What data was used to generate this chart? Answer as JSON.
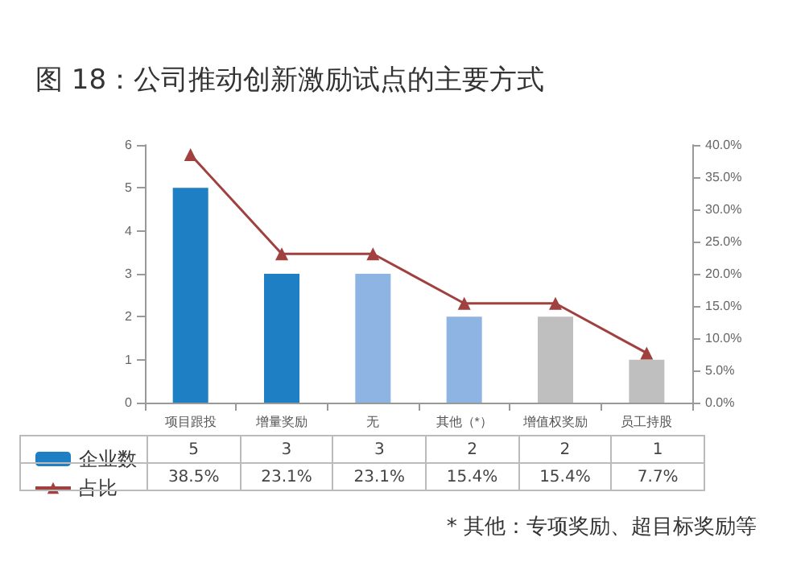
{
  "chart_data": {
    "type": "bar",
    "title": "图 18：公司推动创新激励试点的主要方式",
    "categories": [
      "项目跟投",
      "增量奖励",
      "无",
      "其他（*）",
      "增值权奖励",
      "员工持股"
    ],
    "series": [
      {
        "name": "企业数",
        "colors": [
          "#1f7fc4",
          "#1f7fc4",
          "#8db4e2",
          "#8db4e2",
          "#bfbfbf",
          "#bfbfbf"
        ],
        "color": "#1f7fc4",
        "values": [
          5,
          3,
          3,
          2,
          2,
          1
        ],
        "value_labels": [
          "5",
          "3",
          "3",
          "2",
          "2",
          "1"
        ]
      },
      {
        "name": "占比",
        "type": "line",
        "axis": "y2",
        "color": "#a0413f",
        "marker": "triangle",
        "values": [
          38.5,
          23.1,
          23.1,
          15.4,
          15.4,
          7.7
        ],
        "value_labels": [
          "38.5%",
          "23.1%",
          "23.1%",
          "15.4%",
          "15.4%",
          "7.7%"
        ]
      }
    ],
    "ylim": [
      0,
      6
    ],
    "yticks": [
      0,
      1,
      2,
      3,
      4,
      5,
      6
    ],
    "y2lim": [
      0,
      40
    ],
    "y2ticks": [
      {
        "value": 0,
        "label": "0.0%"
      },
      {
        "value": 5,
        "label": "5.0%"
      },
      {
        "value": 10,
        "label": "10.0%"
      },
      {
        "value": 15,
        "label": "15.0%"
      },
      {
        "value": 20,
        "label": "20.0%"
      },
      {
        "value": 25,
        "label": "25.0%"
      },
      {
        "value": 30,
        "label": "30.0%"
      },
      {
        "value": 35,
        "label": "35.0%"
      },
      {
        "value": 40,
        "label": "40.0%"
      }
    ],
    "grid": false,
    "legend": "bottom left",
    "annotations": [
      "* 其他：专项奖励、超目标奖励等"
    ]
  }
}
